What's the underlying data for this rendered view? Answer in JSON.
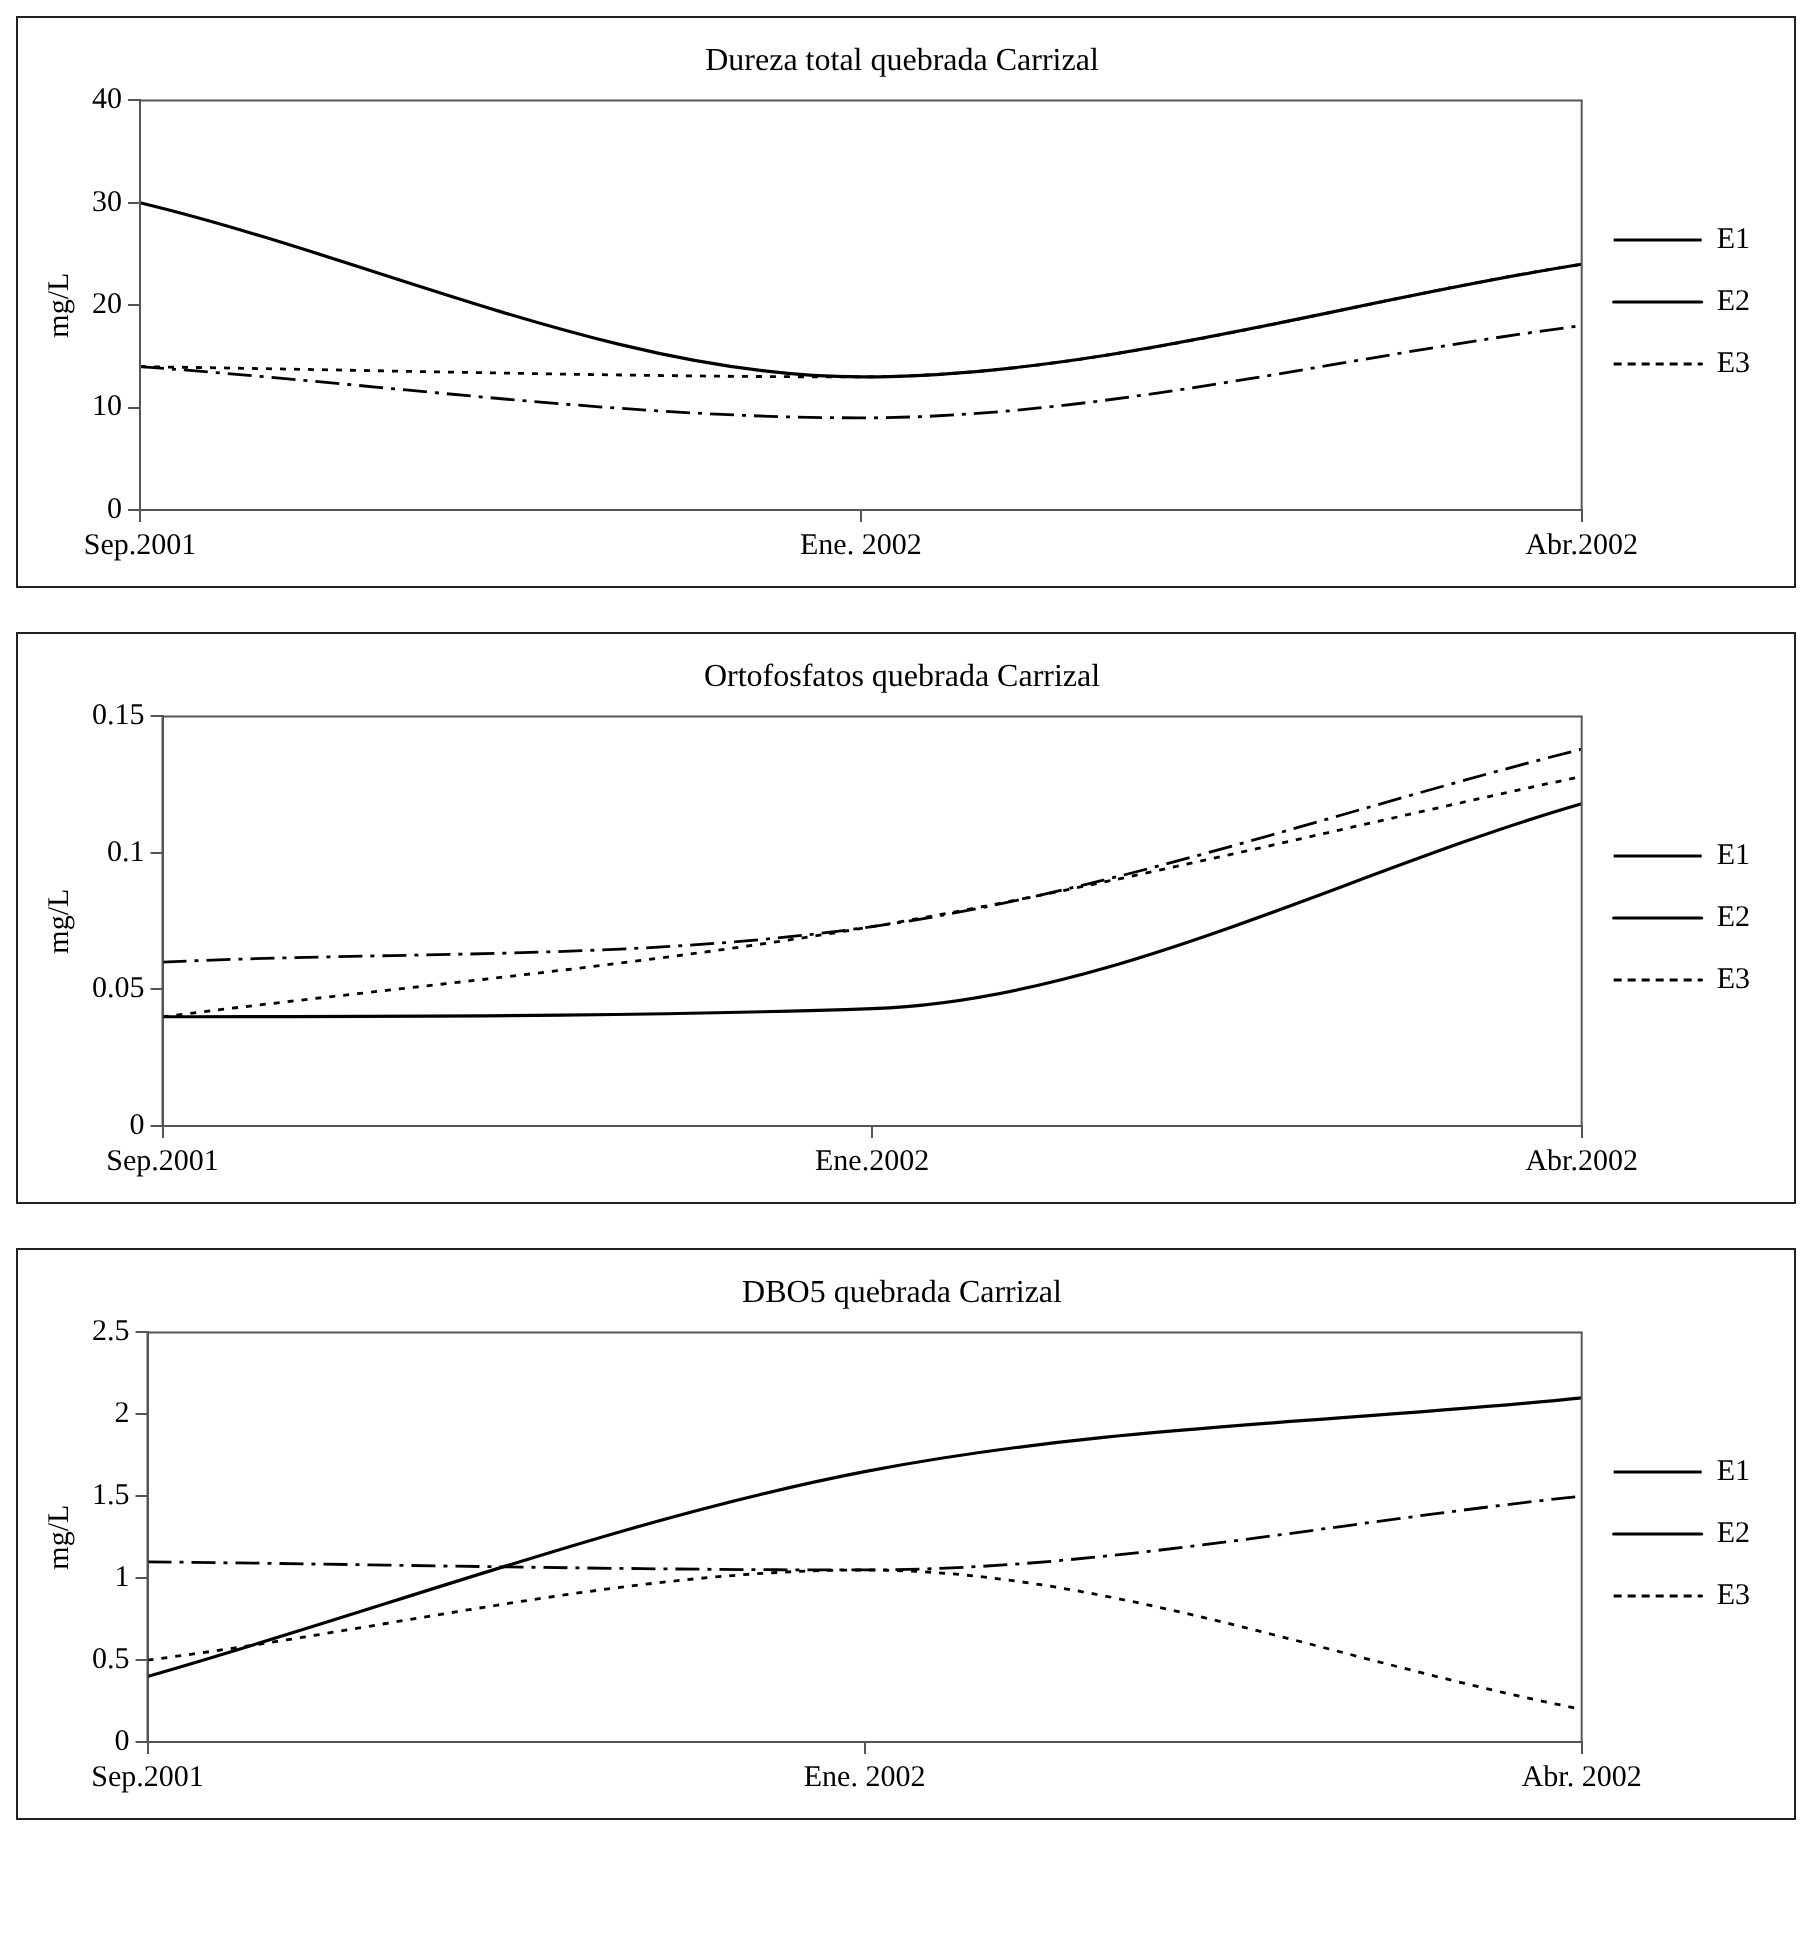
{
  "chart_data": [
    {
      "type": "line",
      "title": "Dureza total quebrada Carrizal",
      "ylabel": "mg/L",
      "categories": [
        "Sep.2001",
        "Ene. 2002",
        "Abr.2002"
      ],
      "ylim": [
        0,
        40
      ],
      "yticks": [
        0,
        10,
        20,
        30,
        40
      ],
      "grid": false,
      "legend": "right",
      "marker": "none",
      "series": [
        {
          "name": "E1",
          "color": "#000000",
          "line_style": "dashed",
          "values": [
            14,
            9,
            18
          ]
        },
        {
          "name": "E2",
          "color": "#000000",
          "line_style": "solid",
          "values": [
            30,
            13,
            24
          ]
        },
        {
          "name": "E3",
          "color": "#000000",
          "line_style": "dotted",
          "values": [
            14,
            13,
            24
          ]
        }
      ]
    },
    {
      "type": "line",
      "title": "Ortofosfatos quebrada Carrizal",
      "ylabel": "mg/L",
      "categories": [
        "Sep.2001",
        "Ene.2002",
        "Abr.2002"
      ],
      "ylim": [
        0,
        0.15
      ],
      "yticks": [
        0,
        0.05,
        0.1,
        0.15
      ],
      "grid": false,
      "legend": "right",
      "marker": "none",
      "series": [
        {
          "name": "E1",
          "color": "#000000",
          "line_style": "dashed",
          "values": [
            0.06,
            0.073,
            0.138
          ]
        },
        {
          "name": "E2",
          "color": "#000000",
          "line_style": "solid",
          "values": [
            0.04,
            0.043,
            0.118
          ]
        },
        {
          "name": "E3",
          "color": "#000000",
          "line_style": "dotted",
          "values": [
            0.04,
            0.073,
            0.128
          ]
        }
      ]
    },
    {
      "type": "line",
      "title": "DBO5 quebrada Carrizal",
      "ylabel": "mg/L",
      "categories": [
        "Sep.2001",
        "Ene. 2002",
        "Abr. 2002"
      ],
      "ylim": [
        0,
        2.5
      ],
      "yticks": [
        0,
        0.5,
        1,
        1.5,
        2,
        2.5
      ],
      "grid": false,
      "legend": "right",
      "marker": "none",
      "series": [
        {
          "name": "E1",
          "color": "#000000",
          "line_style": "dashed",
          "values": [
            1.1,
            1.05,
            1.5
          ]
        },
        {
          "name": "E2",
          "color": "#000000",
          "line_style": "solid",
          "values": [
            0.4,
            1.65,
            2.1
          ]
        },
        {
          "name": "E3",
          "color": "#000000",
          "line_style": "dotted",
          "values": [
            0.5,
            1.05,
            0.2
          ]
        }
      ]
    }
  ]
}
